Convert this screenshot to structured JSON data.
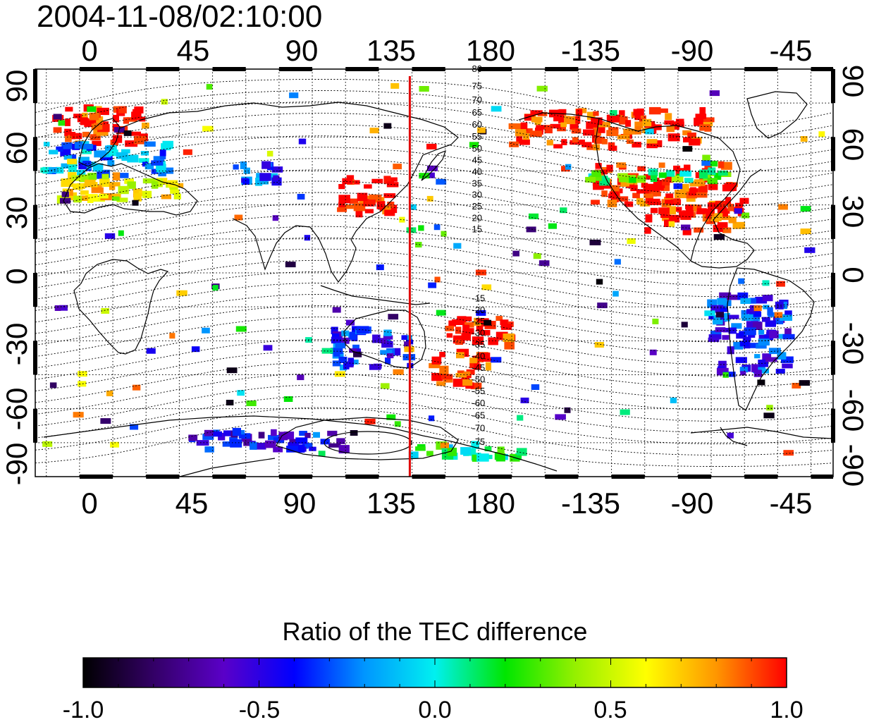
{
  "timestamp": "2004-11-08/02:10:00",
  "top_longitude_labels": [
    "0",
    "45",
    "90",
    "135",
    "180",
    "-135",
    "-90",
    "-45"
  ],
  "bottom_longitude_labels": [
    "0",
    "45",
    "90",
    "135",
    "180",
    "-135",
    "-90",
    "-45"
  ],
  "left_latitude_labels": [
    "90",
    "60",
    "30",
    "0",
    "-30",
    "-60",
    "-90"
  ],
  "right_latitude_labels": [
    "90",
    "60",
    "30",
    "0",
    "-30",
    "-60",
    "-90"
  ],
  "magnetic_latitude_labels_north": [
    "80",
    "75",
    "70",
    "65",
    "60",
    "55",
    "50",
    "45",
    "40",
    "35",
    "30",
    "25",
    "20",
    "15"
  ],
  "magnetic_latitude_labels_south": [
    "-15",
    "-20",
    "-25",
    "-30",
    "-35",
    "-40",
    "-45",
    "-50",
    "-55",
    "-60",
    "-65",
    "-70",
    "-75"
  ],
  "marker_line": {
    "longitude": 149,
    "color": "#e00000"
  },
  "colorbar": {
    "title": "Ratio of the TEC difference",
    "tick_labels": [
      "-1.0",
      "-0.5",
      "0.0",
      "0.5",
      "1.0"
    ],
    "range": [
      -1.0,
      1.0
    ],
    "colors": [
      "#000000",
      "#330066",
      "#5a00c8",
      "#0000ff",
      "#0096ff",
      "#00f0f0",
      "#00e600",
      "#96f000",
      "#ffff00",
      "#ff9600",
      "#ff0000"
    ]
  },
  "chart_data": {
    "type": "heatmap",
    "title": "2004-11-08/02:10:00",
    "x_axis": {
      "ticks": [
        0,
        45,
        90,
        135,
        180,
        -135,
        -90,
        -45
      ],
      "range": [
        -20,
        340
      ]
    },
    "y_axis": {
      "ticks": [
        90,
        60,
        30,
        0,
        -30,
        -60,
        -90
      ],
      "range": [
        -90,
        90
      ]
    },
    "value_range": [
      -1.0,
      1.0
    ],
    "colorbar_label": "Ratio of the TEC difference",
    "regions": [
      {
        "lon": [
          -10,
          30
        ],
        "lat": [
          57,
          73
        ],
        "value": 1.0
      },
      {
        "lon": [
          -15,
          40
        ],
        "lat": [
          43,
          57
        ],
        "value": -0.2
      },
      {
        "lon": [
          -10,
          45
        ],
        "lat": [
          32,
          43
        ],
        "value": 0.6
      },
      {
        "lon": [
          70,
          90
        ],
        "lat": [
          40,
          48
        ],
        "value": -0.3
      },
      {
        "lon": [
          118,
          142
        ],
        "lat": [
          26,
          42
        ],
        "value": 1.0
      },
      {
        "lon": [
          195,
          285
        ],
        "lat": [
          55,
          72
        ],
        "value": 1.0
      },
      {
        "lon": [
          232,
          295
        ],
        "lat": [
          30,
          48
        ],
        "value": 1.0
      },
      {
        "lon": [
          232,
          295
        ],
        "lat": [
          40,
          45
        ],
        "value": 0.2
      },
      {
        "lon": [
          255,
          300
        ],
        "lat": [
          18,
          32
        ],
        "value": 1.0
      },
      {
        "lon": [
          165,
          195
        ],
        "lat": [
          -32,
          -20
        ],
        "value": 1.0
      },
      {
        "lon": [
          160,
          185
        ],
        "lat": [
          -50,
          -35
        ],
        "value": 1.0
      },
      {
        "lon": [
          285,
          320
        ],
        "lat": [
          -45,
          -10
        ],
        "value": -0.4
      },
      {
        "lon": [
          115,
          150
        ],
        "lat": [
          -42,
          -25
        ],
        "value": -0.4
      },
      {
        "lon": [
          50,
          120
        ],
        "lat": [
          -78,
          -70
        ],
        "value": -0.5
      },
      {
        "lon": [
          150,
          200
        ],
        "lat": [
          -82,
          -76
        ],
        "value": 0.1
      }
    ]
  }
}
